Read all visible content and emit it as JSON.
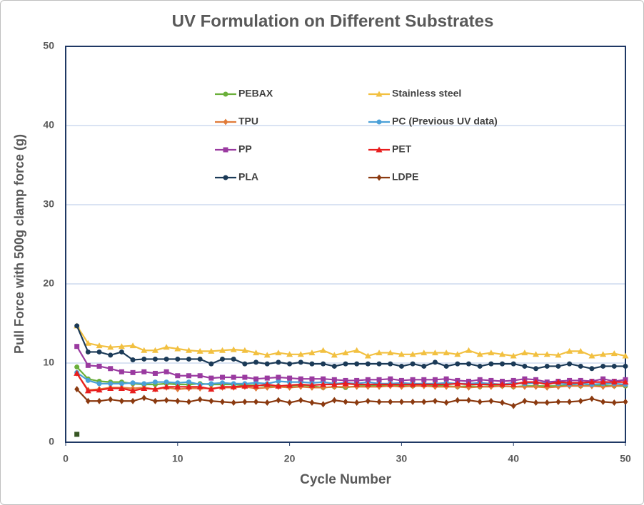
{
  "chart_data": {
    "type": "line",
    "title": "UV Formulation on Different Substrates",
    "x_label": "Cycle Number",
    "y_label": "Pull Force with 500g clamp force (g)",
    "x": [
      1,
      2,
      3,
      4,
      5,
      6,
      7,
      8,
      9,
      10,
      11,
      12,
      13,
      14,
      15,
      16,
      17,
      18,
      19,
      20,
      21,
      22,
      23,
      24,
      25,
      26,
      27,
      28,
      29,
      30,
      31,
      32,
      33,
      34,
      35,
      36,
      37,
      38,
      39,
      40,
      41,
      42,
      43,
      44,
      45,
      46,
      47,
      48,
      49,
      50
    ],
    "xlim": [
      0,
      50
    ],
    "xticks": [
      0,
      10,
      20,
      30,
      40,
      50
    ],
    "ylim": [
      0,
      50
    ],
    "yticks": [
      0,
      10,
      20,
      30,
      40,
      50
    ],
    "grid": true,
    "legend": "top",
    "series": [
      {
        "name": "PEBAX",
        "color": "#6aaf3a",
        "marker": "circle",
        "values": [
          9.5,
          8.0,
          7.7,
          7.6,
          7.6,
          7.4,
          7.3,
          7.3,
          7.4,
          7.3,
          7.3,
          7.4,
          7.3,
          7.3,
          7.3,
          7.2,
          7.2,
          7.1,
          7.1,
          7.1,
          7.2,
          7.1,
          6.9,
          7.0,
          6.9,
          7.1,
          7.1,
          7.2,
          7.2,
          7.1,
          7.1,
          7.2,
          7.2,
          7.1,
          7.0,
          7.1,
          7.0,
          7.1,
          7.1,
          7.0,
          7.1,
          7.1,
          7.1,
          7.1,
          7.2,
          7.1,
          7.2,
          7.2,
          7.1,
          7.1
        ]
      },
      {
        "name": "Stainless steel",
        "color": "#f2c040",
        "marker": "triangle",
        "values": [
          14.7,
          12.5,
          12.2,
          12.0,
          12.1,
          12.2,
          11.6,
          11.6,
          12.0,
          11.8,
          11.6,
          11.5,
          11.5,
          11.6,
          11.7,
          11.6,
          11.3,
          11.0,
          11.3,
          11.1,
          11.1,
          11.3,
          11.6,
          11.0,
          11.3,
          11.6,
          10.9,
          11.3,
          11.3,
          11.1,
          11.1,
          11.3,
          11.3,
          11.3,
          11.1,
          11.6,
          11.1,
          11.3,
          11.1,
          10.9,
          11.3,
          11.1,
          11.1,
          11.0,
          11.5,
          11.5,
          10.9,
          11.1,
          11.2,
          10.9
        ]
      },
      {
        "name": "TPU",
        "color": "#e07b39",
        "marker": "diamond",
        "values": [
          8.7,
          6.6,
          6.7,
          6.9,
          6.9,
          6.8,
          6.9,
          6.7,
          6.9,
          6.7,
          6.8,
          6.8,
          6.8,
          6.9,
          6.9,
          7.0,
          6.8,
          6.9,
          7.0,
          6.9,
          7.0,
          6.9,
          6.9,
          7.0,
          7.0,
          7.0,
          7.0,
          7.0,
          7.1,
          7.0,
          7.1,
          7.1,
          7.0,
          7.0,
          7.0,
          6.9,
          7.0,
          7.0,
          7.1,
          7.0,
          7.0,
          7.0,
          6.9,
          7.0,
          7.1,
          7.1,
          7.1,
          7.0,
          7.1,
          7.2
        ]
      },
      {
        "name": "PC (Previous UV data)",
        "color": "#4aa0d8",
        "marker": "circle",
        "values": [
          8.8,
          7.8,
          7.4,
          7.4,
          7.4,
          7.5,
          7.4,
          7.6,
          7.6,
          7.5,
          7.6,
          7.3,
          7.4,
          7.5,
          7.4,
          7.4,
          7.5,
          7.4,
          7.7,
          7.6,
          7.6,
          7.5,
          7.6,
          7.4,
          7.5,
          7.4,
          7.6,
          7.4,
          7.4,
          7.5,
          7.4,
          7.4,
          7.4,
          7.5,
          7.4,
          7.4,
          7.5,
          7.4,
          7.3,
          7.5,
          7.4,
          7.5,
          7.5,
          7.4,
          7.3,
          7.4,
          7.3,
          7.4,
          7.4,
          7.3
        ]
      },
      {
        "name": "PP",
        "color": "#9a3aa0",
        "marker": "square",
        "values": [
          12.1,
          9.7,
          9.6,
          9.3,
          8.9,
          8.8,
          8.9,
          8.7,
          8.9,
          8.4,
          8.4,
          8.4,
          8.1,
          8.2,
          8.2,
          8.2,
          8.0,
          8.1,
          8.2,
          8.1,
          8.0,
          8.0,
          8.0,
          7.9,
          7.8,
          7.8,
          7.9,
          7.9,
          8.0,
          7.8,
          7.9,
          7.9,
          7.9,
          8.0,
          7.8,
          7.7,
          7.9,
          7.8,
          7.7,
          7.8,
          8.0,
          7.9,
          7.6,
          7.7,
          7.8,
          7.8,
          7.7,
          8.0,
          7.7,
          7.9
        ]
      },
      {
        "name": "PET",
        "color": "#e81e1e",
        "marker": "triangle",
        "values": [
          8.7,
          6.5,
          6.6,
          6.8,
          6.8,
          6.5,
          6.8,
          6.7,
          7.0,
          7.0,
          7.0,
          7.0,
          6.7,
          7.0,
          7.0,
          7.1,
          7.1,
          7.3,
          7.1,
          7.2,
          7.3,
          7.2,
          7.3,
          7.3,
          7.4,
          7.3,
          7.3,
          7.3,
          7.3,
          7.3,
          7.3,
          7.3,
          7.3,
          7.3,
          7.4,
          7.3,
          7.3,
          7.3,
          7.3,
          7.3,
          7.6,
          7.6,
          7.3,
          7.6,
          7.5,
          7.5,
          7.6,
          7.6,
          7.6,
          7.6
        ]
      },
      {
        "name": "PLA",
        "color": "#1b3a57",
        "marker": "circle",
        "values": [
          14.7,
          11.4,
          11.4,
          11.0,
          11.4,
          10.4,
          10.5,
          10.5,
          10.5,
          10.5,
          10.5,
          10.5,
          9.9,
          10.5,
          10.5,
          9.9,
          10.1,
          9.9,
          10.1,
          9.9,
          10.1,
          9.9,
          9.9,
          9.6,
          9.9,
          9.9,
          9.9,
          9.9,
          9.9,
          9.6,
          9.9,
          9.6,
          10.1,
          9.6,
          9.9,
          9.9,
          9.6,
          9.9,
          9.9,
          9.9,
          9.6,
          9.3,
          9.6,
          9.6,
          9.9,
          9.6,
          9.3,
          9.6,
          9.6,
          9.6
        ]
      },
      {
        "name": "LDPE",
        "color": "#8b3a10",
        "marker": "diamond",
        "values": [
          6.7,
          5.2,
          5.2,
          5.4,
          5.2,
          5.2,
          5.6,
          5.2,
          5.3,
          5.2,
          5.1,
          5.4,
          5.2,
          5.1,
          5.0,
          5.1,
          5.1,
          5.0,
          5.3,
          5.0,
          5.3,
          5.0,
          4.8,
          5.3,
          5.1,
          5.0,
          5.2,
          5.1,
          5.1,
          5.1,
          5.1,
          5.1,
          5.2,
          5.0,
          5.3,
          5.3,
          5.1,
          5.2,
          5.0,
          4.6,
          5.2,
          5.0,
          5.0,
          5.1,
          5.1,
          5.2,
          5.5,
          5.1,
          5.0,
          5.1
        ]
      },
      {
        "color": "#375623",
        "marker": "square",
        "x": [
          1
        ],
        "values": [
          1
        ]
      }
    ]
  }
}
